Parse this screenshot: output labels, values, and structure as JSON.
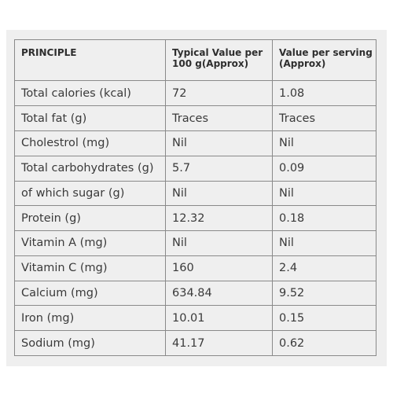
{
  "table": {
    "headers": [
      "PRINCIPLE",
      "Typical Value per 100 g(Approx)",
      "Value per serving (Approx)"
    ],
    "rows": [
      [
        "Total calories (kcal)",
        "72",
        "1.08"
      ],
      [
        "Total fat (g)",
        "Traces",
        "Traces"
      ],
      [
        "Cholestrol (mg)",
        "Nil",
        "Nil"
      ],
      [
        "Total carbohydrates (g)",
        "5.7",
        "0.09"
      ],
      [
        "of which sugar (g)",
        "Nil",
        "Nil"
      ],
      [
        "Protein (g)",
        "12.32",
        "0.18"
      ],
      [
        "Vitamin A (mg)",
        "Nil",
        "Nil"
      ],
      [
        "Vitamin C (mg)",
        "160",
        "2.4"
      ],
      [
        "Calcium (mg)",
        "634.84",
        "9.52"
      ],
      [
        "Iron (mg)",
        "10.01",
        "0.15"
      ],
      [
        "Sodium (mg)",
        "41.17",
        "0.62"
      ]
    ]
  }
}
